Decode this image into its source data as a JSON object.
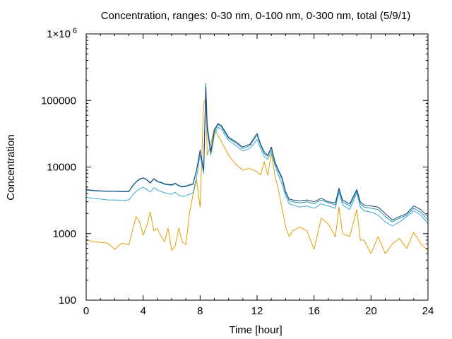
{
  "chart_data": {
    "type": "line",
    "title": "Concentration, ranges: 0-30 nm, 0-100 nm, 0-300 nm, total (5/9/1)",
    "xlabel": "Time [hour]",
    "ylabel": "Concentration",
    "xlim": [
      0,
      24
    ],
    "ylim": [
      100,
      1000000
    ],
    "yscale": "log",
    "grid": false,
    "xticks": [
      0,
      4,
      8,
      12,
      16,
      20,
      24
    ],
    "xtick_labels": [
      "0",
      "4",
      "8",
      "12",
      "16",
      "20",
      "24"
    ],
    "yticks": [
      100,
      1000,
      10000,
      100000,
      1000000
    ],
    "ytick_labels": [
      "100",
      "1000",
      "10000",
      "100000",
      "1×10"
    ],
    "ytick_top_exponent": "6",
    "x": [
      0,
      0.5,
      1,
      1.5,
      2,
      2.5,
      3,
      3.25,
      3.5,
      3.75,
      4,
      4.25,
      4.5,
      4.75,
      5,
      5.25,
      5.5,
      5.75,
      6,
      6.25,
      6.5,
      6.75,
      7,
      7.25,
      7.5,
      7.75,
      8,
      8.25,
      8.4,
      8.5,
      8.75,
      9,
      9.25,
      9.5,
      10,
      10.5,
      11,
      11.5,
      12,
      12.25,
      12.5,
      12.75,
      13,
      13.25,
      13.5,
      13.75,
      14,
      14.25,
      14.5,
      15,
      15.5,
      16,
      16.5,
      17,
      17.5,
      17.75,
      18,
      18.5,
      19,
      19.25,
      19.5,
      20,
      20.5,
      21,
      21.5,
      22,
      22.5,
      23,
      23.5,
      24
    ],
    "series": [
      {
        "color": "#1f3f7a",
        "values": [
          4600,
          4450,
          4400,
          4350,
          4350,
          4300,
          4300,
          5200,
          6000,
          6600,
          6900,
          6500,
          5800,
          6700,
          6100,
          5900,
          5600,
          5500,
          5400,
          5700,
          5300,
          5100,
          5200,
          5400,
          5600,
          9000,
          18000,
          9000,
          160000,
          40000,
          17000,
          36000,
          45000,
          42000,
          28000,
          24000,
          20000,
          22000,
          32000,
          22000,
          17000,
          15000,
          20000,
          12000,
          9000,
          7000,
          4300,
          3300,
          3200,
          3100,
          3200,
          3000,
          3400,
          3000,
          2900,
          4800,
          3200,
          2800,
          4600,
          3000,
          2700,
          2600,
          2500,
          2000,
          1600,
          1800,
          2000,
          2600,
          2300,
          1800
        ]
      },
      {
        "color": "#1a9aab",
        "values": [
          4500,
          4400,
          4350,
          4300,
          4300,
          4250,
          4250,
          5100,
          5900,
          6500,
          6800,
          6400,
          5700,
          6600,
          6000,
          5800,
          5500,
          5400,
          5300,
          5600,
          5200,
          5000,
          5100,
          5300,
          5500,
          8800,
          17500,
          8800,
          180000,
          45000,
          16000,
          34000,
          44000,
          40000,
          27000,
          23000,
          19000,
          21000,
          30000,
          21000,
          16000,
          14500,
          19500,
          11500,
          8500,
          6500,
          4100,
          3100,
          3000,
          2900,
          3000,
          2800,
          3200,
          2900,
          2700,
          4600,
          3000,
          2600,
          4400,
          2800,
          2500,
          2400,
          2300,
          1800,
          1500,
          1700,
          1900,
          2400,
          2100,
          1600
        ]
      },
      {
        "color": "#3fa7d6",
        "values": [
          3500,
          3400,
          3300,
          3200,
          3200,
          3150,
          3200,
          3800,
          4300,
          4700,
          5000,
          4600,
          4200,
          4900,
          4500,
          4300,
          4100,
          4000,
          3900,
          4200,
          3800,
          3600,
          3700,
          3900,
          4100,
          7000,
          15000,
          8000,
          130000,
          35000,
          15000,
          30000,
          40000,
          37000,
          25000,
          21000,
          17500,
          19000,
          26000,
          19000,
          14500,
          13000,
          17500,
          10500,
          7500,
          5500,
          3700,
          2800,
          2700,
          2500,
          2600,
          2400,
          2800,
          2600,
          2400,
          4200,
          2700,
          2300,
          4100,
          2500,
          2200,
          2100,
          1900,
          1500,
          1300,
          1500,
          1800,
          2200,
          1900,
          1400
        ]
      },
      {
        "color": "#e0a000",
        "values": [
          800,
          760,
          740,
          720,
          580,
          720,
          680,
          1100,
          1800,
          1500,
          950,
          1300,
          2100,
          1100,
          1200,
          920,
          750,
          1200,
          560,
          650,
          1200,
          750,
          680,
          2000,
          3800,
          6500,
          2500,
          90000,
          110000,
          15000,
          22000,
          38000,
          30000,
          24000,
          15000,
          11000,
          9000,
          9500,
          8500,
          7600,
          12000,
          7500,
          16000,
          7500,
          4500,
          2400,
          1300,
          900,
          1100,
          1250,
          1100,
          580,
          1700,
          1400,
          900,
          2500,
          1000,
          900,
          2300,
          800,
          800,
          500,
          900,
          500,
          700,
          850,
          600,
          1050,
          700,
          550
        ]
      }
    ]
  }
}
